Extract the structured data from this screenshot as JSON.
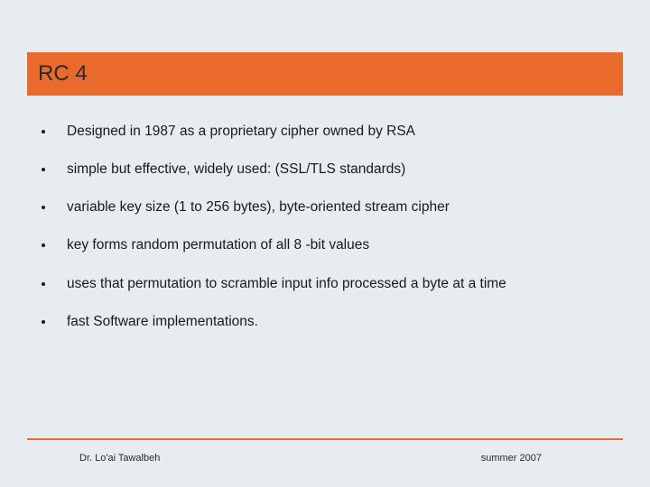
{
  "title": "RC 4",
  "bullets": [
    "Designed in 1987 as a proprietary cipher owned by RSA",
    "simple but effective, widely used: (SSL/TLS standards)",
    "variable key size (1 to 256 bytes), byte-oriented stream cipher",
    "key forms random permutation of all 8 -bit values",
    "uses that permutation to scramble input info processed a byte at a time",
    "fast Software implementations."
  ],
  "footer": {
    "left": "Dr. Lo'ai Tawalbeh",
    "right": "summer 2007"
  },
  "colors": {
    "background": "#e6ecef",
    "accent": "#e96a2b",
    "text": "#1a1a1a",
    "title_text": "#2a2a2a"
  },
  "typography": {
    "title_fontsize": 24,
    "bullet_fontsize": 15.5,
    "footer_fontsize": 11,
    "font_family": "Arial"
  }
}
